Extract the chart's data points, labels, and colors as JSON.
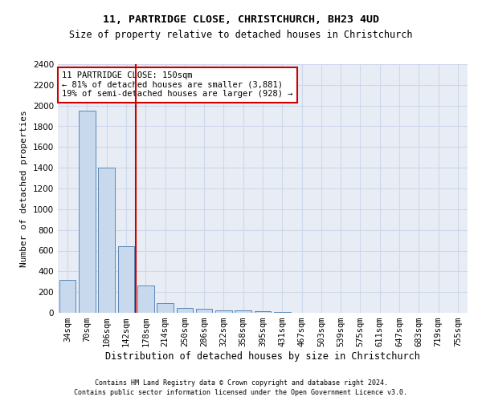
{
  "title1": "11, PARTRIDGE CLOSE, CHRISTCHURCH, BH23 4UD",
  "title2": "Size of property relative to detached houses in Christchurch",
  "xlabel": "Distribution of detached houses by size in Christchurch",
  "ylabel": "Number of detached properties",
  "footer1": "Contains HM Land Registry data © Crown copyright and database right 2024.",
  "footer2": "Contains public sector information licensed under the Open Government Licence v3.0.",
  "bar_labels": [
    "34sqm",
    "70sqm",
    "106sqm",
    "142sqm",
    "178sqm",
    "214sqm",
    "250sqm",
    "286sqm",
    "322sqm",
    "358sqm",
    "395sqm",
    "431sqm",
    "467sqm",
    "503sqm",
    "539sqm",
    "575sqm",
    "611sqm",
    "647sqm",
    "683sqm",
    "719sqm",
    "755sqm"
  ],
  "bar_values": [
    320,
    1950,
    1400,
    640,
    260,
    95,
    45,
    35,
    25,
    20,
    15,
    5,
    3,
    2,
    1,
    0,
    0,
    0,
    0,
    0,
    0
  ],
  "bar_color": "#c8d9ed",
  "bar_edge_color": "#5a88b8",
  "vline_position": 3.5,
  "vline_color": "#cc0000",
  "annotation_text": "11 PARTRIDGE CLOSE: 150sqm\n← 81% of detached houses are smaller (3,881)\n19% of semi-detached houses are larger (928) →",
  "annotation_box_color": "#ffffff",
  "annotation_box_edge": "#cc0000",
  "ylim": [
    0,
    2400
  ],
  "yticks": [
    0,
    200,
    400,
    600,
    800,
    1000,
    1200,
    1400,
    1600,
    1800,
    2000,
    2200,
    2400
  ],
  "grid_color": "#cdd8ea",
  "background_color": "#e8edf5",
  "title1_fontsize": 9.5,
  "title2_fontsize": 8.5,
  "ylabel_fontsize": 8,
  "xlabel_fontsize": 8.5,
  "tick_fontsize": 7.5,
  "annotation_fontsize": 7.5,
  "footer_fontsize": 6
}
